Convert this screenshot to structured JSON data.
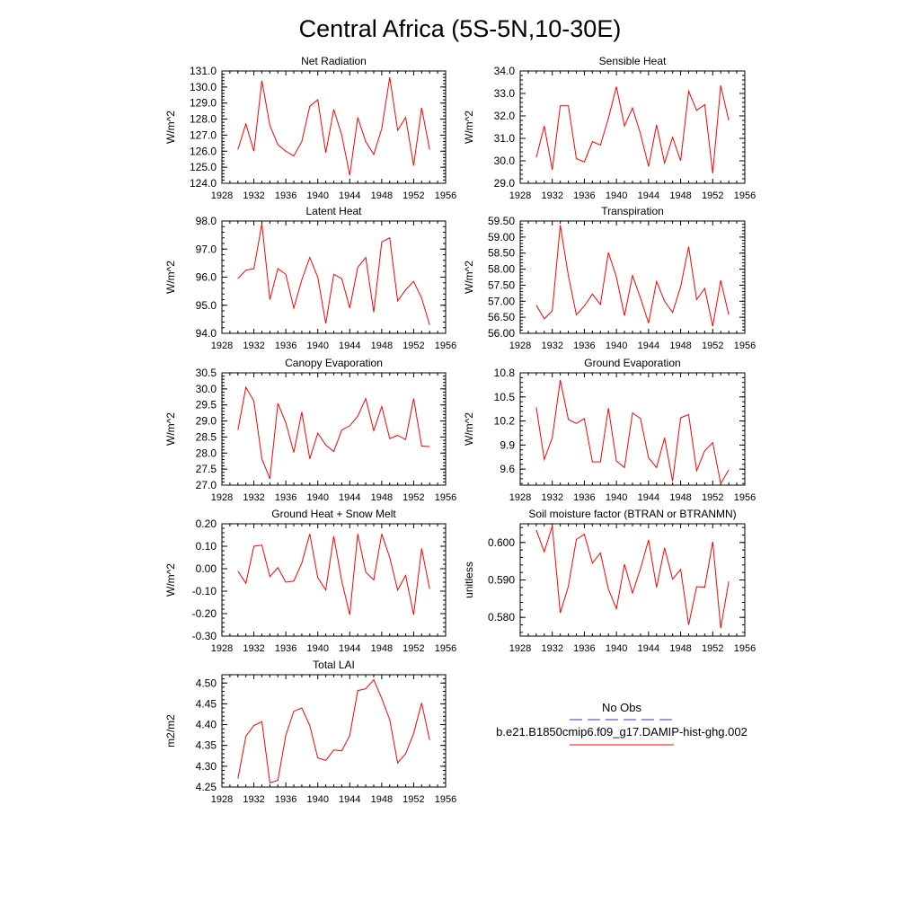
{
  "figure": {
    "title": "Central Africa (5S-5N,10-30E)"
  },
  "legend": {
    "obs_label": "No Obs",
    "model_label": "b.e21.B1850cmip6.f09_g17.DAMIP-hist-ghg.002",
    "obs_color": "#3333cc",
    "model_color": "#ff0000"
  },
  "chart_data": [
    {
      "type": "line",
      "title": "Net Radiation",
      "xlabel": "",
      "ylabel": "W/m^2",
      "xlim": [
        1928,
        1956
      ],
      "ylim": [
        124,
        131
      ],
      "xticks": [
        1928,
        1932,
        1936,
        1940,
        1944,
        1948,
        1952,
        1956
      ],
      "yticks": [
        "124.0",
        "125.0",
        "126.0",
        "127.0",
        "128.0",
        "129.0",
        "130.0",
        "131.0"
      ],
      "x": [
        1930,
        1931,
        1932,
        1933,
        1934,
        1935,
        1936,
        1937,
        1938,
        1939,
        1940,
        1941,
        1942,
        1943,
        1944,
        1945,
        1946,
        1947,
        1948,
        1949,
        1950,
        1951,
        1952,
        1953,
        1954
      ],
      "series": [
        {
          "values": [
            126.1,
            127.7,
            126.0,
            130.4,
            127.6,
            126.4,
            126.0,
            125.7,
            126.6,
            128.8,
            129.2,
            125.9,
            128.6,
            127.0,
            124.5,
            128.1,
            126.6,
            125.8,
            127.4,
            130.6,
            127.3,
            128.1,
            125.1,
            128.7,
            126.1
          ]
        }
      ]
    },
    {
      "type": "line",
      "title": "Sensible Heat",
      "xlabel": "",
      "ylabel": "W/m^2",
      "xlim": [
        1928,
        1956
      ],
      "ylim": [
        29,
        34
      ],
      "xticks": [
        1928,
        1932,
        1936,
        1940,
        1944,
        1948,
        1952,
        1956
      ],
      "yticks": [
        "29.0",
        "30.0",
        "31.0",
        "32.0",
        "33.0",
        "34.0"
      ],
      "x": [
        1930,
        1931,
        1932,
        1933,
        1934,
        1935,
        1936,
        1937,
        1938,
        1939,
        1940,
        1941,
        1942,
        1943,
        1944,
        1945,
        1946,
        1947,
        1948,
        1949,
        1950,
        1951,
        1952,
        1953,
        1954
      ],
      "series": [
        {
          "values": [
            30.15,
            31.55,
            29.6,
            32.45,
            32.45,
            30.1,
            29.95,
            30.85,
            30.7,
            31.9,
            33.3,
            31.55,
            32.35,
            31.2,
            29.75,
            31.6,
            29.9,
            31.05,
            30.0,
            33.1,
            32.25,
            32.5,
            29.45,
            33.35,
            31.8
          ]
        }
      ]
    },
    {
      "type": "line",
      "title": "Latent Heat",
      "xlabel": "",
      "ylabel": "W/m^2",
      "xlim": [
        1928,
        1956
      ],
      "ylim": [
        94,
        98
      ],
      "xticks": [
        1928,
        1932,
        1936,
        1940,
        1944,
        1948,
        1952,
        1956
      ],
      "yticks": [
        "94.0",
        "95.0",
        "96.0",
        "97.0",
        "98.0"
      ],
      "x": [
        1930,
        1931,
        1932,
        1933,
        1934,
        1935,
        1936,
        1937,
        1938,
        1939,
        1940,
        1941,
        1942,
        1943,
        1944,
        1945,
        1946,
        1947,
        1948,
        1949,
        1950,
        1951,
        1952,
        1953,
        1954
      ],
      "series": [
        {
          "values": [
            95.95,
            96.25,
            96.3,
            97.9,
            95.2,
            96.3,
            96.1,
            94.9,
            95.9,
            96.7,
            96.0,
            94.35,
            96.1,
            95.95,
            94.9,
            96.35,
            96.7,
            94.75,
            97.25,
            97.4,
            95.15,
            95.55,
            95.85,
            95.25,
            94.3
          ]
        }
      ]
    },
    {
      "type": "line",
      "title": "Transpiration",
      "xlabel": "",
      "ylabel": "W/m^2",
      "xlim": [
        1928,
        1956
      ],
      "ylim": [
        56,
        59.5
      ],
      "xticks": [
        1928,
        1932,
        1936,
        1940,
        1944,
        1948,
        1952,
        1956
      ],
      "yticks": [
        "56.00",
        "56.50",
        "57.00",
        "57.50",
        "58.00",
        "58.50",
        "59.00",
        "59.50"
      ],
      "x": [
        1930,
        1931,
        1932,
        1933,
        1934,
        1935,
        1936,
        1937,
        1938,
        1939,
        1940,
        1941,
        1942,
        1943,
        1944,
        1945,
        1946,
        1947,
        1948,
        1949,
        1950,
        1951,
        1952,
        1953,
        1954
      ],
      "series": [
        {
          "values": [
            56.88,
            56.45,
            56.7,
            59.37,
            57.8,
            56.58,
            56.85,
            57.22,
            56.9,
            58.52,
            57.75,
            56.55,
            57.8,
            57.1,
            56.32,
            57.62,
            57.0,
            56.65,
            57.45,
            58.7,
            57.05,
            57.4,
            56.22,
            57.65,
            56.58
          ]
        }
      ]
    },
    {
      "type": "line",
      "title": "Canopy Evaporation",
      "xlabel": "",
      "ylabel": "W/m^2",
      "xlim": [
        1928,
        1956
      ],
      "ylim": [
        27,
        30.5
      ],
      "xticks": [
        1928,
        1932,
        1936,
        1940,
        1944,
        1948,
        1952,
        1956
      ],
      "yticks": [
        "27.0",
        "27.5",
        "28.0",
        "28.5",
        "29.0",
        "29.5",
        "30.0",
        "30.5"
      ],
      "x": [
        1930,
        1931,
        1932,
        1933,
        1934,
        1935,
        1936,
        1937,
        1938,
        1939,
        1940,
        1941,
        1942,
        1943,
        1944,
        1945,
        1946,
        1947,
        1948,
        1949,
        1950,
        1951,
        1952,
        1953,
        1954
      ],
      "series": [
        {
          "values": [
            28.72,
            30.05,
            29.62,
            27.82,
            27.2,
            29.55,
            28.95,
            28.02,
            29.28,
            27.82,
            28.62,
            28.25,
            28.05,
            28.72,
            28.85,
            29.15,
            29.7,
            28.7,
            29.45,
            28.45,
            28.55,
            28.42,
            29.7,
            28.22,
            28.2
          ]
        }
      ]
    },
    {
      "type": "line",
      "title": "Ground Evaporation",
      "xlabel": "",
      "ylabel": "W/m^2",
      "xlim": [
        1928,
        1956
      ],
      "ylim": [
        9.4,
        10.8
      ],
      "xticks": [
        1928,
        1932,
        1936,
        1940,
        1944,
        1948,
        1952,
        1956
      ],
      "yticks": [
        "9.6",
        "9.9",
        "10.2",
        "10.5",
        "10.8"
      ],
      "x": [
        1930,
        1931,
        1932,
        1933,
        1934,
        1935,
        1936,
        1937,
        1938,
        1939,
        1940,
        1941,
        1942,
        1943,
        1944,
        1945,
        1946,
        1947,
        1948,
        1949,
        1950,
        1951,
        1952,
        1953,
        1954
      ],
      "series": [
        {
          "values": [
            10.37,
            9.72,
            9.99,
            10.71,
            10.22,
            10.17,
            10.23,
            9.69,
            9.69,
            10.36,
            9.7,
            9.62,
            10.3,
            10.23,
            9.74,
            9.62,
            9.99,
            9.45,
            10.24,
            10.28,
            9.58,
            9.83,
            9.93,
            9.42,
            9.59
          ]
        }
      ]
    },
    {
      "type": "line",
      "title": "Ground Heat + Snow Melt",
      "xlabel": "",
      "ylabel": "W/m^2",
      "xlim": [
        1928,
        1956
      ],
      "ylim": [
        -0.3,
        0.2
      ],
      "xticks": [
        1928,
        1932,
        1936,
        1940,
        1944,
        1948,
        1952,
        1956
      ],
      "yticks": [
        "-0.30",
        "-0.20",
        "-0.10",
        "0.00",
        "0.10",
        "0.20"
      ],
      "x": [
        1930,
        1931,
        1932,
        1933,
        1934,
        1935,
        1936,
        1937,
        1938,
        1939,
        1940,
        1941,
        1942,
        1943,
        1944,
        1945,
        1946,
        1947,
        1948,
        1949,
        1950,
        1951,
        1952,
        1953,
        1954
      ],
      "series": [
        {
          "values": [
            -0.01,
            -0.065,
            0.1,
            0.105,
            -0.035,
            0.005,
            -0.06,
            -0.055,
            0.025,
            0.155,
            -0.04,
            -0.095,
            0.145,
            -0.055,
            -0.205,
            0.155,
            -0.015,
            -0.05,
            0.155,
            0.05,
            -0.095,
            -0.03,
            -0.205,
            0.09,
            -0.09
          ]
        }
      ]
    },
    {
      "type": "line",
      "title": "Soil moisture factor (BTRAN or BTRANMN)",
      "xlabel": "",
      "ylabel": "unitless",
      "xlim": [
        1928,
        1956
      ],
      "ylim": [
        0.575,
        0.605
      ],
      "xticks": [
        1928,
        1932,
        1936,
        1940,
        1944,
        1948,
        1952,
        1956
      ],
      "yticks": [
        "0.580",
        "0.590",
        "0.600"
      ],
      "x": [
        1930,
        1931,
        1932,
        1933,
        1934,
        1935,
        1936,
        1937,
        1938,
        1939,
        1940,
        1941,
        1942,
        1943,
        1944,
        1945,
        1946,
        1947,
        1948,
        1949,
        1950,
        1951,
        1952,
        1953,
        1954
      ],
      "series": [
        {
          "values": [
            0.6033,
            0.5975,
            0.6044,
            0.5812,
            0.5883,
            0.6008,
            0.6022,
            0.5945,
            0.5972,
            0.5875,
            0.5823,
            0.5942,
            0.5865,
            0.593,
            0.6007,
            0.588,
            0.5986,
            0.5902,
            0.5928,
            0.578,
            0.5882,
            0.588,
            0.6002,
            0.5771,
            0.5896
          ]
        }
      ]
    },
    {
      "type": "line",
      "title": "Total LAI",
      "xlabel": "",
      "ylabel": "m2/m2",
      "xlim": [
        1928,
        1956
      ],
      "ylim": [
        4.25,
        4.52
      ],
      "xticks": [
        1928,
        1932,
        1936,
        1940,
        1944,
        1948,
        1952,
        1956
      ],
      "yticks": [
        "4.25",
        "4.30",
        "4.35",
        "4.40",
        "4.45",
        "4.50"
      ],
      "x": [
        1930,
        1931,
        1932,
        1933,
        1934,
        1935,
        1936,
        1937,
        1938,
        1939,
        1940,
        1941,
        1942,
        1943,
        1944,
        1945,
        1946,
        1947,
        1948,
        1949,
        1950,
        1951,
        1952,
        1953,
        1954
      ],
      "series": [
        {
          "values": [
            4.27,
            4.372,
            4.398,
            4.407,
            4.26,
            4.266,
            4.374,
            4.432,
            4.44,
            4.398,
            4.32,
            4.314,
            4.339,
            4.337,
            4.374,
            4.482,
            4.486,
            4.508,
            4.463,
            4.412,
            4.308,
            4.33,
            4.379,
            4.452,
            4.363
          ]
        }
      ]
    }
  ]
}
